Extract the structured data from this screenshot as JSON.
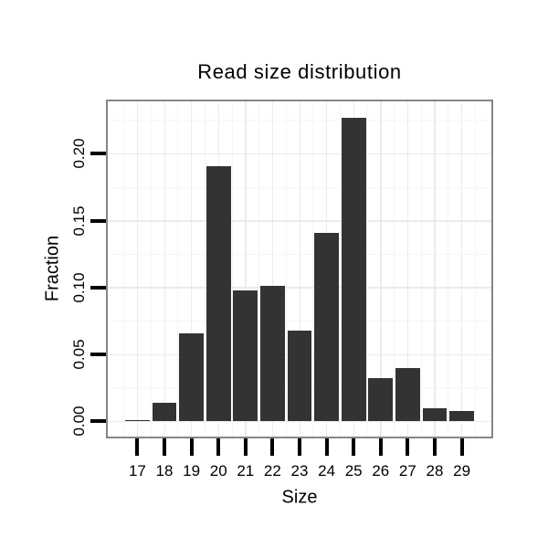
{
  "chart_data": {
    "type": "bar",
    "title": "Read size distribution",
    "xlabel": "Size",
    "ylabel": "Fraction",
    "categories": [
      17,
      18,
      19,
      20,
      21,
      22,
      23,
      24,
      25,
      26,
      27,
      28,
      29
    ],
    "values": [
      0.001,
      0.014,
      0.066,
      0.191,
      0.098,
      0.101,
      0.068,
      0.141,
      0.227,
      0.032,
      0.04,
      0.01,
      0.008
    ],
    "bar_width": 0.9,
    "x_tick_labels": [
      "17",
      "18",
      "19",
      "20",
      "21",
      "22",
      "23",
      "24",
      "25",
      "26",
      "27",
      "28",
      "29"
    ],
    "y_ticks": [
      0.0,
      0.05,
      0.1,
      0.15,
      0.2
    ],
    "y_tick_labels": [
      "0.00",
      "0.05",
      "0.10",
      "0.15",
      "0.20"
    ],
    "y_minor_ticks": [
      0.025,
      0.075,
      0.125,
      0.175,
      0.225
    ],
    "x_minor_ticks": [
      16.5,
      17.5,
      18.5,
      19.5,
      20.5,
      21.5,
      22.5,
      23.5,
      24.5,
      25.5,
      26.5,
      27.5,
      28.5,
      29.5
    ],
    "xlim": [
      15.905,
      30.095
    ],
    "ylim": [
      -0.0114,
      0.2392
    ],
    "grid": "major+minor",
    "legend": false,
    "colors": {
      "bar": "#333333",
      "panel_border": "#868686",
      "grid_major": "#ebebeb",
      "grid_minor": "#f5f5f5",
      "tick": "#000000",
      "text": "#000000",
      "background": "#ffffff"
    }
  }
}
